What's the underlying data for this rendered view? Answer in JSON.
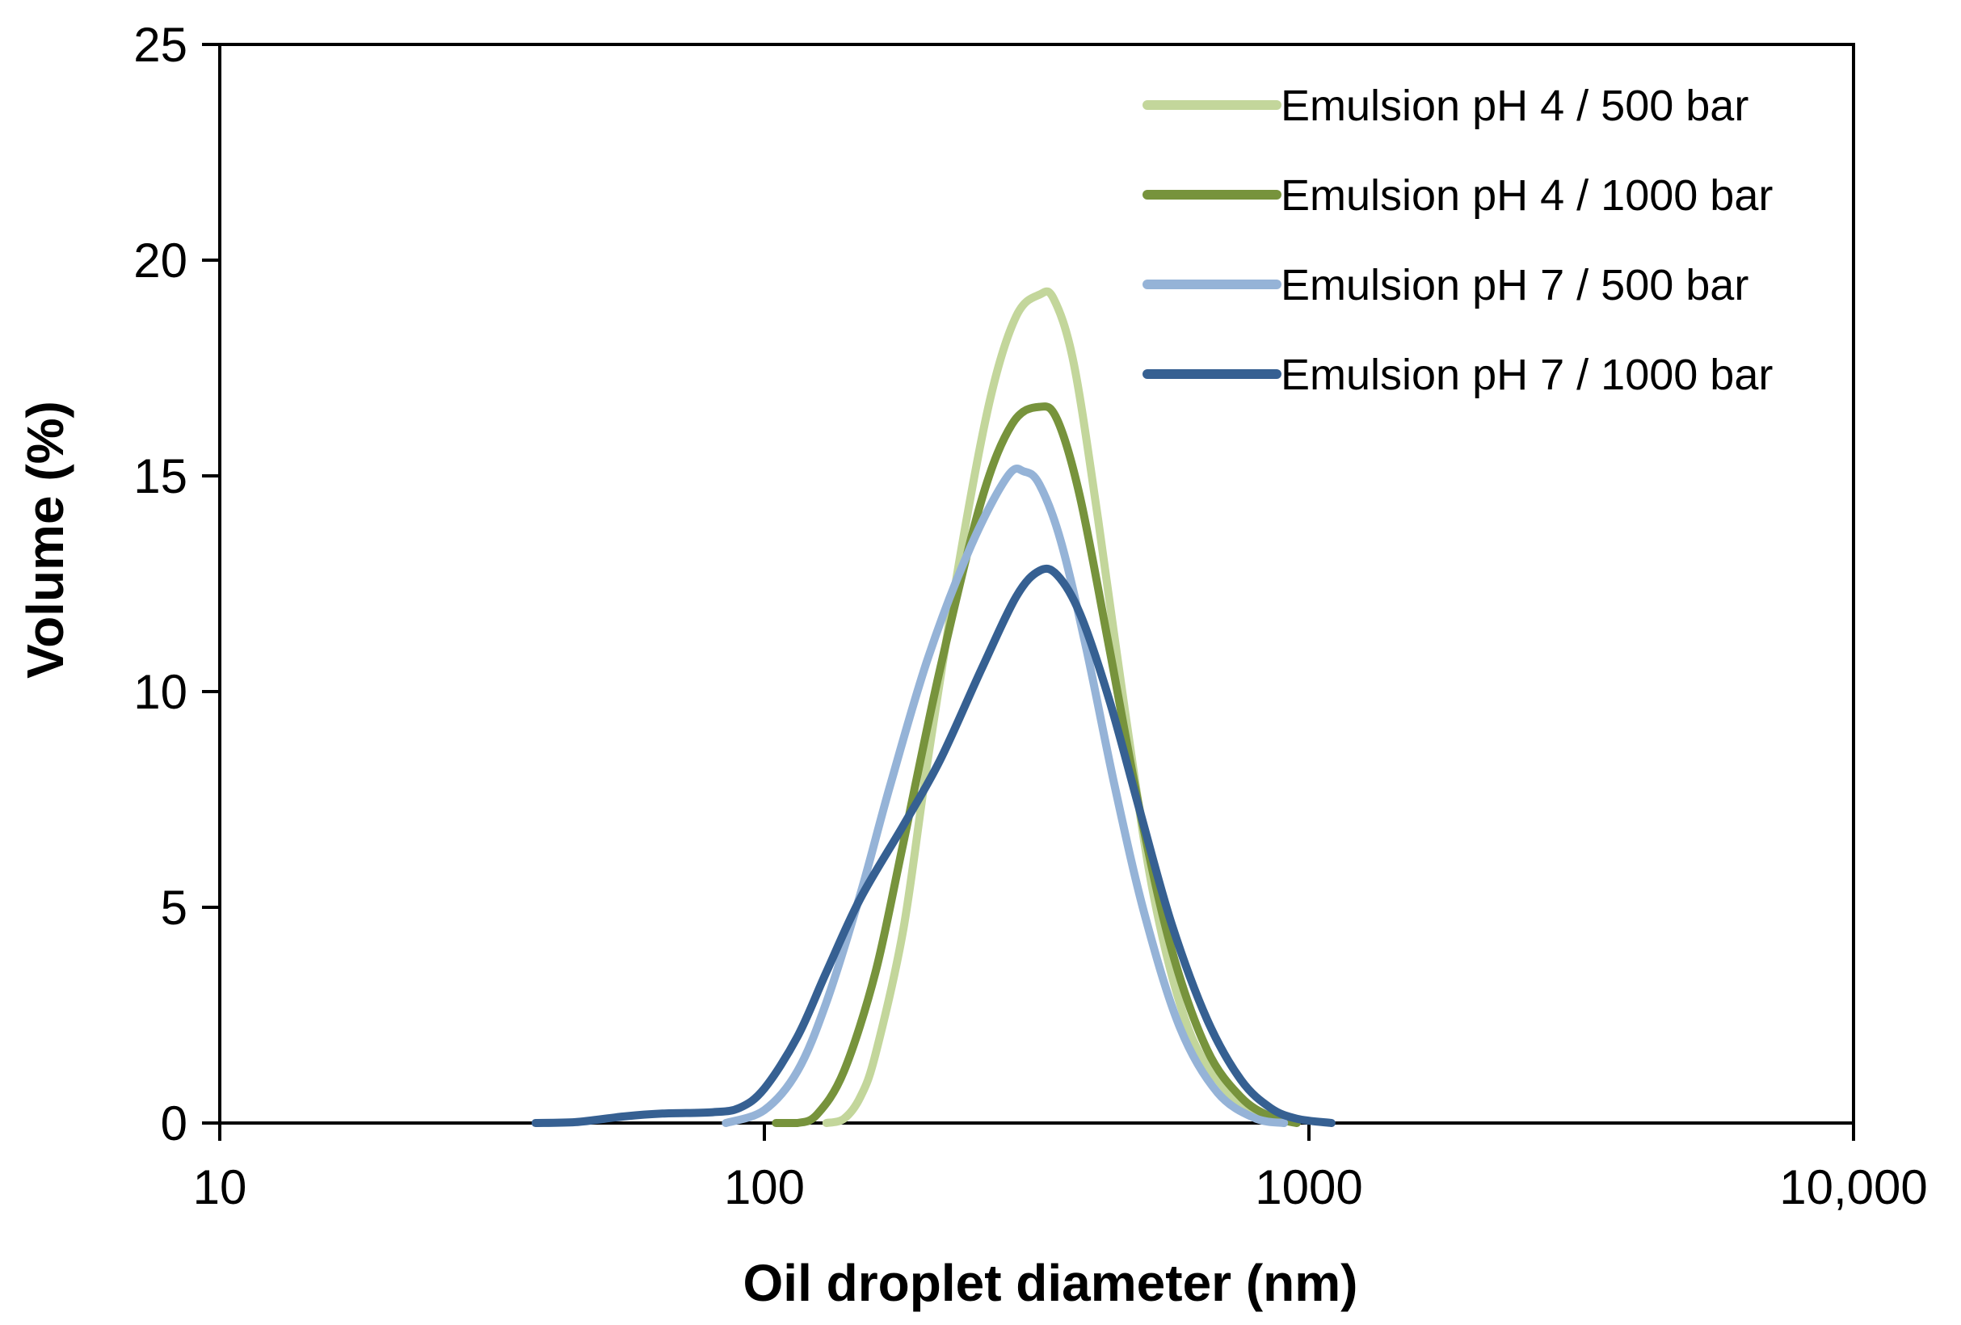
{
  "chart_data": {
    "type": "line",
    "title": "",
    "xlabel": "Oil droplet diameter (nm)",
    "ylabel": "Volume (%)",
    "x_scale": "log",
    "xlim": [
      10,
      10000
    ],
    "ylim": [
      0,
      25
    ],
    "x_ticks": [
      10,
      100,
      1000,
      10000
    ],
    "x_tick_labels": [
      "10",
      "100",
      "1000",
      "10,000"
    ],
    "y_ticks": [
      0,
      5,
      10,
      15,
      20,
      25
    ],
    "y_tick_labels": [
      "0",
      "5",
      "10",
      "15",
      "20",
      "25"
    ],
    "grid": false,
    "legend_position": "top-right",
    "series": [
      {
        "name": "Emulsion pH 4 / 500 bar",
        "color": "#c3d69b",
        "points": [
          [
            130,
            0
          ],
          [
            140,
            0.1
          ],
          [
            150,
            0.6
          ],
          [
            160,
            1.6
          ],
          [
            180,
            4.5
          ],
          [
            200,
            8.5
          ],
          [
            230,
            13.3
          ],
          [
            260,
            16.8
          ],
          [
            290,
            18.7
          ],
          [
            320,
            19.2
          ],
          [
            340,
            19.1
          ],
          [
            370,
            17.6
          ],
          [
            410,
            14.0
          ],
          [
            460,
            9.5
          ],
          [
            520,
            5.2
          ],
          [
            600,
            2.2
          ],
          [
            700,
            0.8
          ],
          [
            800,
            0.2
          ],
          [
            900,
            0
          ]
        ]
      },
      {
        "name": "Emulsion pH 4 / 1000 bar",
        "color": "#77933c",
        "points": [
          [
            105,
            0
          ],
          [
            115,
            0
          ],
          [
            125,
            0.2
          ],
          [
            140,
            1.2
          ],
          [
            160,
            3.5
          ],
          [
            180,
            6.5
          ],
          [
            210,
            10.5
          ],
          [
            250,
            14.4
          ],
          [
            285,
            16.2
          ],
          [
            320,
            16.6
          ],
          [
            345,
            16.3
          ],
          [
            380,
            14.5
          ],
          [
            430,
            11.0
          ],
          [
            490,
            7.2
          ],
          [
            560,
            4.0
          ],
          [
            650,
            1.7
          ],
          [
            750,
            0.6
          ],
          [
            850,
            0.15
          ],
          [
            950,
            0
          ]
        ]
      },
      {
        "name": "Emulsion pH 7 / 500 bar",
        "color": "#95b3d7",
        "points": [
          [
            85,
            0
          ],
          [
            100,
            0.3
          ],
          [
            115,
            1.2
          ],
          [
            130,
            2.8
          ],
          [
            150,
            5.3
          ],
          [
            170,
            7.8
          ],
          [
            200,
            10.8
          ],
          [
            240,
            13.4
          ],
          [
            280,
            15.0
          ],
          [
            300,
            15.1
          ],
          [
            320,
            14.8
          ],
          [
            350,
            13.5
          ],
          [
            390,
            11.0
          ],
          [
            440,
            7.8
          ],
          [
            500,
            4.8
          ],
          [
            580,
            2.2
          ],
          [
            680,
            0.7
          ],
          [
            800,
            0.1
          ],
          [
            900,
            0
          ]
        ]
      },
      {
        "name": "Emulsion pH 7 / 1000 bar",
        "color": "#366092",
        "points": [
          [
            38,
            0
          ],
          [
            45,
            0.02
          ],
          [
            55,
            0.15
          ],
          [
            65,
            0.22
          ],
          [
            80,
            0.25
          ],
          [
            90,
            0.35
          ],
          [
            100,
            0.8
          ],
          [
            115,
            2.0
          ],
          [
            130,
            3.5
          ],
          [
            150,
            5.2
          ],
          [
            180,
            6.9
          ],
          [
            210,
            8.4
          ],
          [
            250,
            10.5
          ],
          [
            290,
            12.2
          ],
          [
            320,
            12.8
          ],
          [
            345,
            12.7
          ],
          [
            380,
            11.8
          ],
          [
            430,
            9.8
          ],
          [
            490,
            7.2
          ],
          [
            560,
            4.6
          ],
          [
            650,
            2.4
          ],
          [
            750,
            1.0
          ],
          [
            850,
            0.35
          ],
          [
            950,
            0.1
          ],
          [
            1100,
            0
          ]
        ]
      }
    ]
  }
}
